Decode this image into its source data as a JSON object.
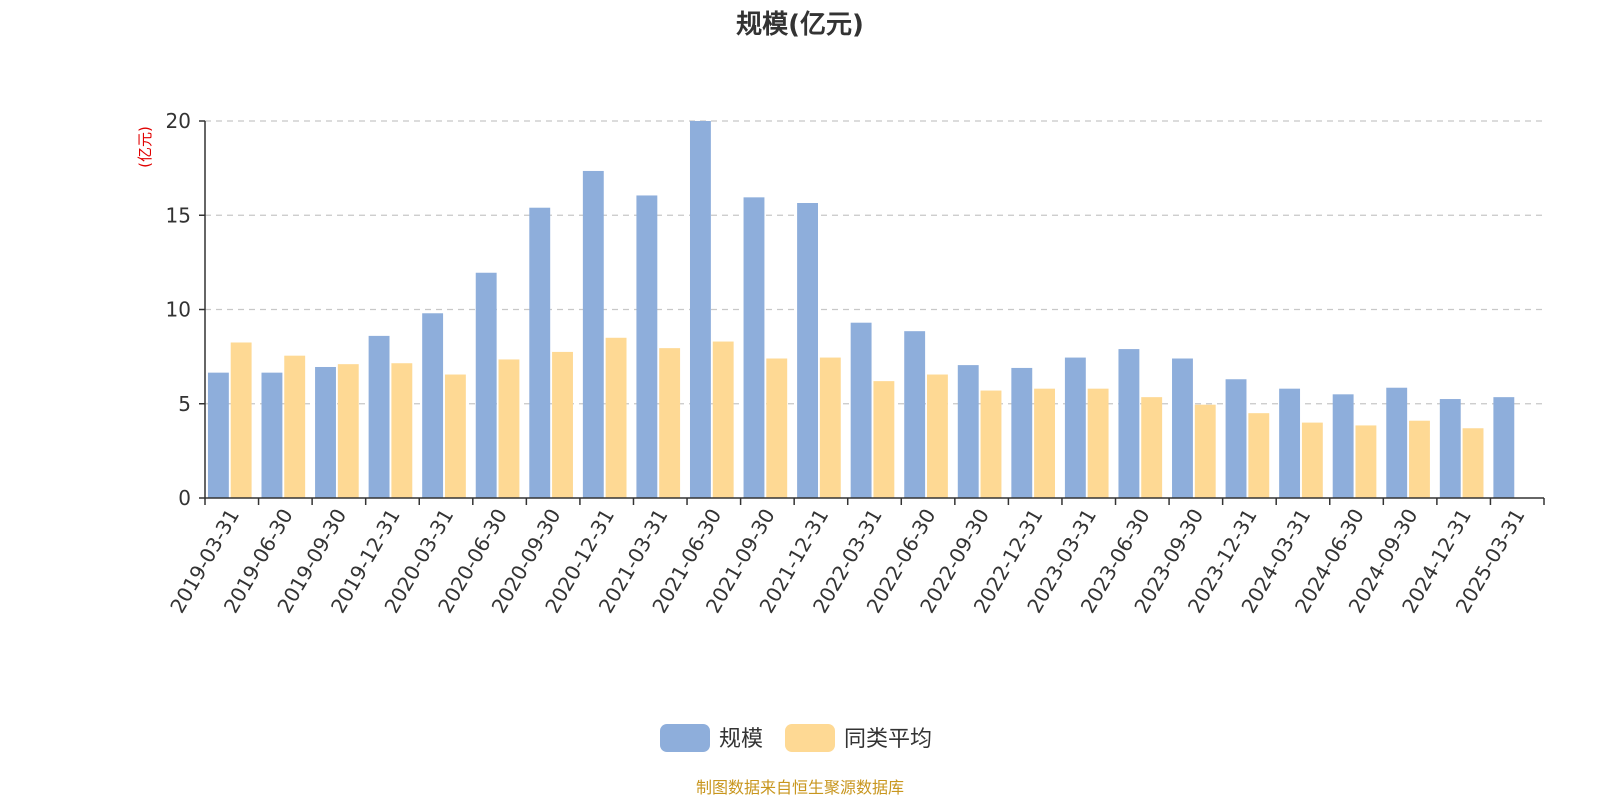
{
  "chart_data": {
    "type": "bar",
    "title": "规模(亿元)",
    "ylabel": "(亿元)",
    "ylim": [
      0,
      20
    ],
    "yticks": [
      0,
      5,
      10,
      15,
      20
    ],
    "grid": true,
    "legend_position": "bottom-center",
    "categories": [
      "2019-03-31",
      "2019-06-30",
      "2019-09-30",
      "2019-12-31",
      "2020-03-31",
      "2020-06-30",
      "2020-09-30",
      "2020-12-31",
      "2021-03-31",
      "2021-06-30",
      "2021-09-30",
      "2021-12-31",
      "2022-03-31",
      "2022-06-30",
      "2022-09-30",
      "2022-12-31",
      "2023-03-31",
      "2023-06-30",
      "2023-09-30",
      "2023-12-31",
      "2024-03-31",
      "2024-06-30",
      "2024-09-30",
      "2024-12-31",
      "2025-03-31"
    ],
    "series": [
      {
        "name": "规模",
        "color": "#8eaedb",
        "values": [
          6.65,
          6.65,
          6.95,
          8.6,
          9.8,
          11.95,
          15.4,
          17.35,
          16.05,
          20.0,
          15.95,
          15.65,
          9.3,
          8.85,
          7.05,
          6.9,
          7.45,
          7.9,
          7.4,
          6.3,
          5.8,
          5.5,
          5.85,
          5.25,
          5.35
        ]
      },
      {
        "name": "同类平均",
        "color": "#fed994",
        "values": [
          8.25,
          7.55,
          7.1,
          7.15,
          6.55,
          7.35,
          7.75,
          8.5,
          7.95,
          8.3,
          7.4,
          7.45,
          6.2,
          6.55,
          5.7,
          5.8,
          5.8,
          5.35,
          4.95,
          4.5,
          4.0,
          3.85,
          4.1,
          3.7,
          null
        ]
      }
    ]
  },
  "source_text": "制图数据来自恒生聚源数据库"
}
